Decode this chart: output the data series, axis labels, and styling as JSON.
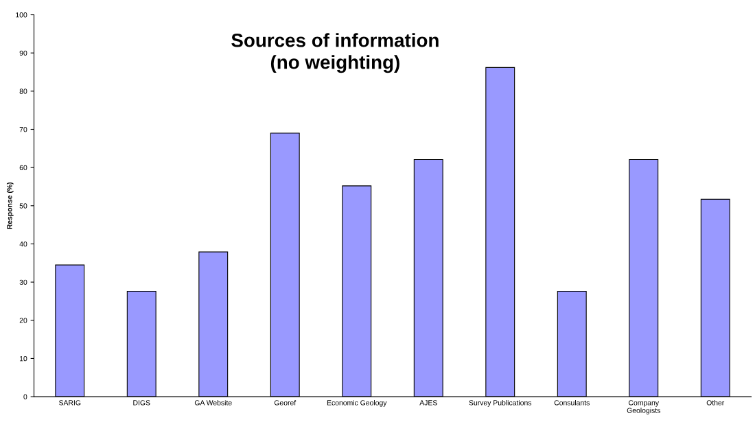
{
  "chart_data": {
    "type": "bar",
    "title": "Sources of information\n(no weighting)",
    "ylabel": "Response (%)",
    "categories": [
      "SARIG",
      "DIGS",
      "GA Website",
      "Georef",
      "Economic Geology",
      "AJES",
      "Survey Publications",
      "Consulants",
      "Company\nGeologists",
      "Other"
    ],
    "values": [
      34.5,
      27.6,
      37.9,
      69.0,
      55.2,
      62.1,
      86.2,
      27.6,
      62.1,
      51.7
    ],
    "color": "#9999ff",
    "ylim": [
      0,
      100
    ],
    "yticks": [
      0,
      10,
      20,
      30,
      40,
      50,
      60,
      70,
      80,
      90,
      100
    ],
    "grid": false,
    "legend": false
  }
}
